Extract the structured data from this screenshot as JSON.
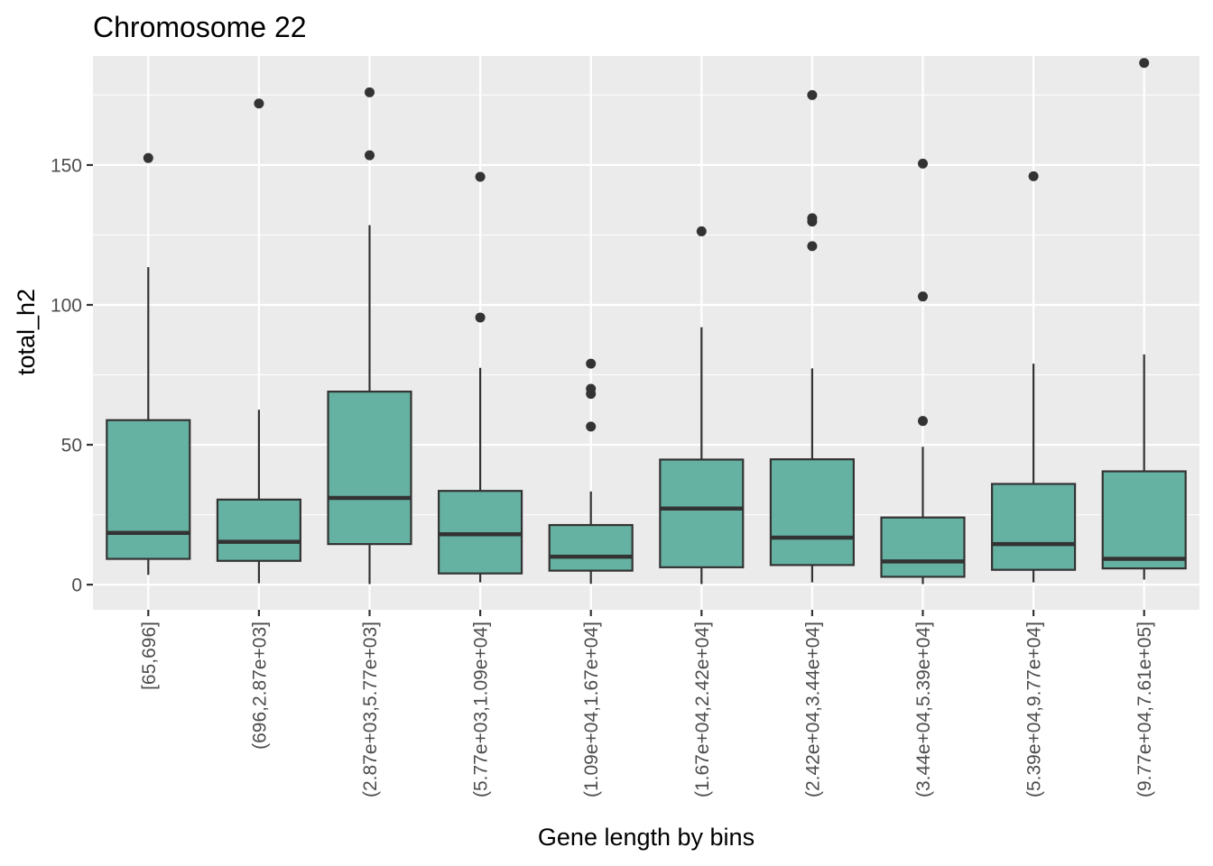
{
  "chart_data": {
    "type": "box",
    "title": "Chromosome 22",
    "xlabel": "Gene length by bins",
    "ylabel": "total_h2",
    "ylim": [
      -9,
      189
    ],
    "yticks": [
      0,
      50,
      100,
      150
    ],
    "grid": true,
    "legend": "none",
    "colors": {
      "panel": "#ebebeb",
      "grid": "#ffffff",
      "box_fill": "#66b2a2",
      "line": "#333333"
    },
    "categories": [
      "[65,696]",
      "(696,2.87e+03]",
      "(2.87e+03,5.77e+03]",
      "(5.77e+03,1.09e+04]",
      "(1.09e+04,1.67e+04]",
      "(1.67e+04,2.42e+04]",
      "(2.42e+04,3.44e+04]",
      "(3.44e+04,5.39e+04]",
      "(5.39e+04,9.77e+04]",
      "(9.77e+04,7.61e+05]"
    ],
    "boxes": [
      {
        "whisker_low": 3.5,
        "q1": 9.2,
        "median": 18.5,
        "q3": 58.8,
        "whisker_high": 113.5,
        "outliers": [
          152.5
        ]
      },
      {
        "whisker_low": 0.5,
        "q1": 8.5,
        "median": 15.3,
        "q3": 30.4,
        "whisker_high": 62.5,
        "outliers": [
          172
        ]
      },
      {
        "whisker_low": 0.2,
        "q1": 14.5,
        "median": 31,
        "q3": 69,
        "whisker_high": 128.5,
        "outliers": [
          153.5,
          176
        ]
      },
      {
        "whisker_low": 0.8,
        "q1": 4,
        "median": 18,
        "q3": 33.5,
        "whisker_high": 77.5,
        "outliers": [
          95.5,
          145.8
        ]
      },
      {
        "whisker_low": 0.3,
        "q1": 5,
        "median": 10,
        "q3": 21.3,
        "whisker_high": 33.3,
        "outliers": [
          56.5,
          68.2,
          70,
          79
        ]
      },
      {
        "whisker_low": 0.2,
        "q1": 6.2,
        "median": 27.2,
        "q3": 44.7,
        "whisker_high": 92,
        "outliers": [
          126.3
        ]
      },
      {
        "whisker_low": 0.8,
        "q1": 7,
        "median": 16.8,
        "q3": 44.8,
        "whisker_high": 77.3,
        "outliers": [
          121,
          129.8,
          131,
          175
        ]
      },
      {
        "whisker_low": 0.2,
        "q1": 2.8,
        "median": 8.3,
        "q3": 24,
        "whisker_high": 49.3,
        "outliers": [
          58.5,
          103,
          150.5
        ]
      },
      {
        "whisker_low": 0.8,
        "q1": 5.3,
        "median": 14.5,
        "q3": 36,
        "whisker_high": 79,
        "outliers": [
          146
        ]
      },
      {
        "whisker_low": 1.8,
        "q1": 5.8,
        "median": 9.2,
        "q3": 40.5,
        "whisker_high": 82.3,
        "outliers": [
          186.5
        ]
      }
    ]
  }
}
